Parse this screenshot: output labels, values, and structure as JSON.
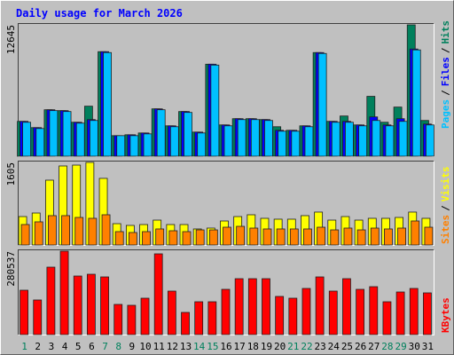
{
  "chart_data": [
    {
      "type": "bar",
      "title": "Daily usage for March 2026",
      "categories": [
        "1",
        "2",
        "3",
        "4",
        "5",
        "6",
        "7",
        "8",
        "9",
        "10",
        "11",
        "12",
        "13",
        "14",
        "15",
        "16",
        "17",
        "18",
        "19",
        "20",
        "21",
        "22",
        "23",
        "24",
        "25",
        "26",
        "27",
        "28",
        "29",
        "30",
        "31"
      ],
      "category_colors": [
        "#00805c",
        "#000000",
        "#000000",
        "#000000",
        "#000000",
        "#000000",
        "#00805c",
        "#00805c",
        "#000000",
        "#000000",
        "#000000",
        "#000000",
        "#000000",
        "#00805c",
        "#00805c",
        "#000000",
        "#000000",
        "#000000",
        "#000000",
        "#000000",
        "#00805c",
        "#00805c",
        "#000000",
        "#000000",
        "#000000",
        "#000000",
        "#000000",
        "#00805c",
        "#00805c",
        "#000000",
        "#000000"
      ],
      "legend_separator": "/",
      "ylim": [
        0,
        12645
      ],
      "yticks": [
        12645
      ],
      "series": [
        {
          "name": "Pages",
          "color": "#00c0ff",
          "values": [
            3268,
            2666,
            4386,
            4300,
            3182,
            3440,
            9976,
            1978,
            1978,
            2150,
            4472,
            2838,
            4214,
            2236,
            8772,
            2924,
            3526,
            3526,
            3440,
            2408,
            2408,
            2838,
            9890,
            3268,
            3268,
            2924,
            3440,
            2924,
            3354,
            10234,
            3010
          ]
        },
        {
          "name": "Files",
          "color": "#0000ff",
          "values": [
            3354,
            2752,
            4472,
            4386,
            3268,
            3526,
            10062,
            1978,
            2064,
            2236,
            4558,
            2924,
            4300,
            2322,
            8858,
            3010,
            3612,
            3612,
            3526,
            2494,
            2494,
            2924,
            9976,
            3354,
            3354,
            3010,
            3784,
            3010,
            3612,
            10320,
            3096
          ]
        },
        {
          "name": "Hits",
          "color": "#00805c",
          "values": [
            3354,
            2752,
            4472,
            4386,
            3268,
            4816,
            10062,
            1978,
            2064,
            2236,
            4558,
            2924,
            4300,
            2322,
            8858,
            3010,
            3612,
            3612,
            3526,
            2838,
            2494,
            2924,
            9976,
            3354,
            3870,
            3010,
            5762,
            3268,
            4730,
            12645,
            3440
          ]
        }
      ]
    },
    {
      "type": "bar",
      "legend_separator": "/",
      "ylim": [
        0,
        1605
      ],
      "yticks": [
        1605
      ],
      "series": [
        {
          "name": "Sites",
          "color": "#ff8000",
          "values": [
            397,
            449,
            570,
            570,
            535,
            518,
            587,
            259,
            242,
            259,
            311,
            276,
            259,
            293,
            293,
            345,
            362,
            328,
            311,
            311,
            311,
            311,
            345,
            293,
            328,
            293,
            328,
            311,
            328,
            466,
            345
          ]
        },
        {
          "name": "Visits",
          "color": "#ffff00",
          "values": [
            552,
            621,
            1260,
            1536,
            1553,
            1605,
            1295,
            414,
            380,
            397,
            483,
            397,
            397,
            311,
            328,
            466,
            552,
            587,
            518,
            501,
            501,
            570,
            639,
            483,
            552,
            483,
            518,
            518,
            535,
            639,
            518
          ]
        }
      ]
    },
    {
      "type": "bar",
      "ylim": [
        0,
        280537
      ],
      "yticks": [
        280537
      ],
      "series": [
        {
          "name": "KBytes",
          "color": "#ff0000",
          "values": [
            149200,
            116376,
            226784,
            280537,
            196944,
            202912,
            193960,
            101456,
            98472,
            122344,
            271544,
            146216,
            74600,
            110408,
            110408,
            152184,
            187992,
            187992,
            187992,
            128312,
            122344,
            155168,
            193960,
            146216,
            187992,
            152184,
            161136,
            110408,
            143232,
            155168,
            140248
          ]
        }
      ]
    }
  ]
}
